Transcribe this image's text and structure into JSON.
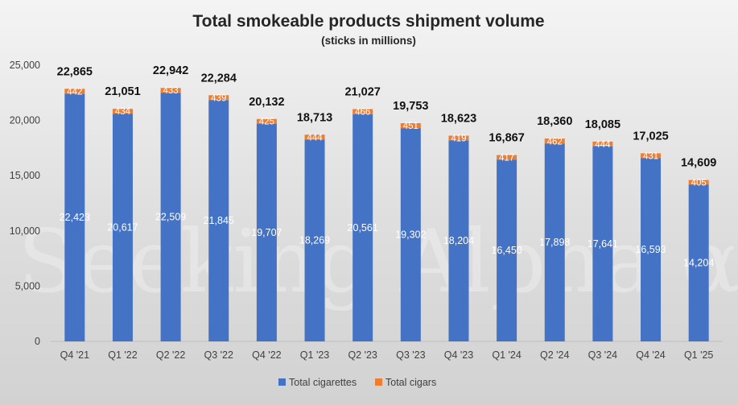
{
  "colors": {
    "cigarettes": "#4472c4",
    "cigars": "#ed7d31"
  },
  "watermark": "Seeking Alpha α",
  "chart_data": {
    "type": "bar",
    "stacked": true,
    "title": "Total smokeable products shipment volume",
    "subtitle": "(sticks in millions)",
    "categories": [
      "Q4 '21",
      "Q1 '22",
      "Q2 '22",
      "Q3 '22",
      "Q4 '22",
      "Q1 '23",
      "Q2 '23",
      "Q3 '23",
      "Q4 '23",
      "Q1 '24",
      "Q2 '24",
      "Q3 '24",
      "Q4 '24",
      "Q1 '25"
    ],
    "series": [
      {
        "name": "Total cigarettes",
        "values": [
          22423,
          20617,
          22509,
          21845,
          19707,
          18269,
          20561,
          19302,
          18204,
          16450,
          17898,
          17641,
          16593,
          14204
        ]
      },
      {
        "name": "Total cigars",
        "values": [
          442,
          434,
          433,
          439,
          425,
          444,
          466,
          451,
          419,
          417,
          462,
          444,
          431,
          405
        ]
      }
    ],
    "totals": [
      22865,
      21051,
      22942,
      22284,
      20132,
      18713,
      21027,
      19753,
      18623,
      16867,
      18360,
      18085,
      17025,
      14609
    ],
    "ylim": [
      0,
      25000
    ],
    "yticks": [
      0,
      5000,
      10000,
      15000,
      20000,
      25000
    ],
    "legend_position": "bottom",
    "grid": false
  }
}
